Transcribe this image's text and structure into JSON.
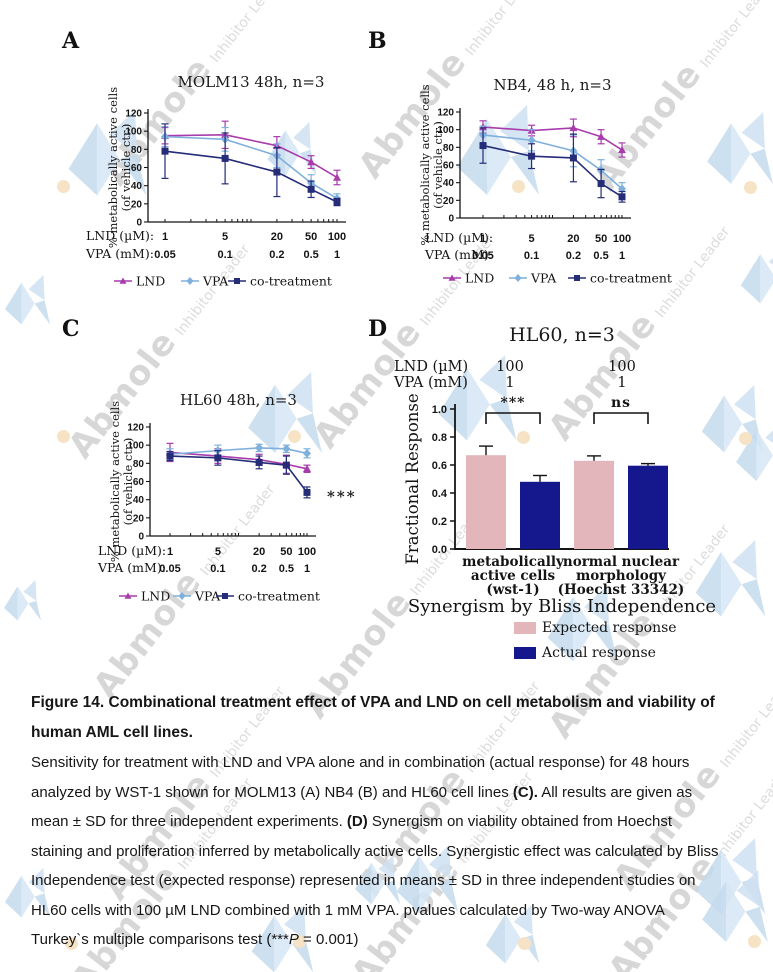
{
  "figure": {
    "panel_labels": [
      "A",
      "B",
      "C",
      "D"
    ]
  },
  "watermark": {
    "brand": "Abmole",
    "tagline": "Inhibitor Leader",
    "text_color": "#d7d7d7",
    "logo_color": "#c9ddf0",
    "dot_color": "#f6e3c5"
  },
  "chart_data": [
    {
      "panel": "A",
      "type": "line",
      "title": "MOLM13 48h, n=3",
      "ylabel_lines": [
        "% metabolically active cells",
        "(of vehicle ctr.)"
      ],
      "ylim": [
        0,
        120
      ],
      "yticks": [
        0,
        20,
        40,
        60,
        80,
        100,
        120
      ],
      "x": [
        1,
        5,
        20,
        50,
        100
      ],
      "x_scale": "log",
      "dose_rows": [
        {
          "label": "LND (µM):",
          "values": [
            "1",
            "5",
            "20",
            "50",
            "100"
          ]
        },
        {
          "label": "VPA (mM):",
          "values": [
            "0.05",
            "0.1",
            "0.2",
            "0.5",
            "1"
          ]
        }
      ],
      "series": [
        {
          "name": "LND",
          "color": "#a83cad",
          "marker": "triangle",
          "values": [
            95,
            96,
            84,
            66,
            49
          ],
          "err": [
            9,
            15,
            10,
            7,
            8
          ]
        },
        {
          "name": "VPA",
          "color": "#7fb0dc",
          "marker": "diamond",
          "values": [
            94,
            91,
            73,
            43,
            26
          ],
          "err": [
            11,
            13,
            13,
            9,
            5
          ]
        },
        {
          "name": "co-treatment",
          "color": "#252c78",
          "marker": "square",
          "values": [
            78,
            70,
            55,
            36,
            22
          ],
          "err": [
            30,
            28,
            27,
            9,
            4
          ]
        }
      ]
    },
    {
      "panel": "B",
      "type": "line",
      "title": "NB4, 48 h, n=3",
      "ylabel_lines": [
        "% metabolically active cells",
        "(of vehicle ctr.)"
      ],
      "ylim": [
        0,
        120
      ],
      "yticks": [
        0,
        20,
        40,
        60,
        80,
        100,
        120
      ],
      "x": [
        1,
        5,
        20,
        50,
        100
      ],
      "x_scale": "log",
      "dose_rows": [
        {
          "label": "LND (µM):",
          "values": [
            "1",
            "5",
            "20",
            "50",
            "100"
          ]
        },
        {
          "label": "VPA (mM):",
          "values": [
            "0.05",
            "0.1",
            "0.2",
            "0.5",
            "1"
          ]
        }
      ],
      "series": [
        {
          "name": "LND",
          "color": "#a83cad",
          "marker": "triangle",
          "values": [
            103,
            99,
            102,
            92,
            77
          ],
          "err": [
            7,
            6,
            10,
            8,
            8
          ]
        },
        {
          "name": "VPA",
          "color": "#7fb0dc",
          "marker": "diamond",
          "values": [
            94,
            88,
            76,
            54,
            33
          ],
          "err": [
            10,
            12,
            18,
            12,
            7
          ]
        },
        {
          "name": "co-treatment",
          "color": "#252c78",
          "marker": "square",
          "values": [
            82,
            70,
            68,
            39,
            24
          ],
          "err": [
            20,
            14,
            27,
            16,
            6
          ]
        }
      ]
    },
    {
      "panel": "C",
      "type": "line",
      "title": "HL60 48h, n=3",
      "ylabel_lines": [
        "% metabolically active cells",
        "(of vehicle ctr.)"
      ],
      "ylim": [
        0,
        120
      ],
      "yticks": [
        0,
        20,
        40,
        60,
        80,
        100,
        120
      ],
      "x": [
        1,
        5,
        20,
        50,
        100
      ],
      "x_scale": "log",
      "annotation": "***",
      "dose_rows": [
        {
          "label": "LND (µM):",
          "values": [
            "1",
            "5",
            "20",
            "50",
            "100"
          ]
        },
        {
          "label": "VPA (mM):",
          "values": [
            "0.05",
            "0.1",
            "0.2",
            "0.5",
            "1"
          ]
        }
      ],
      "series": [
        {
          "name": "LND",
          "color": "#a83cad",
          "marker": "triangle",
          "values": [
            92,
            88,
            84,
            79,
            74
          ],
          "err": [
            10,
            8,
            6,
            10,
            4
          ]
        },
        {
          "name": "VPA",
          "color": "#7fb0dc",
          "marker": "diamond",
          "values": [
            90,
            94,
            97,
            96,
            91
          ],
          "err": [
            6,
            6,
            4,
            4,
            5
          ]
        },
        {
          "name": "co-treatment",
          "color": "#252c78",
          "marker": "square",
          "values": [
            88,
            86,
            81,
            78,
            48
          ],
          "err": [
            5,
            8,
            7,
            10,
            6
          ]
        }
      ]
    },
    {
      "panel": "D",
      "type": "bar",
      "title": "HL60, n=3",
      "ylabel": "Fractional Response",
      "ylim": [
        0,
        1
      ],
      "yticks": [
        "0.0",
        "0.2",
        "0.4",
        "0.6",
        "0.8",
        "1.0"
      ],
      "dose_rows": [
        {
          "label": "LND (µM)",
          "values": [
            "100",
            "100"
          ]
        },
        {
          "label": "VPA (mM)",
          "values": [
            "1",
            "1"
          ]
        }
      ],
      "groups": [
        {
          "label_lines": [
            "metabolically",
            "active cells",
            "(wst-1)"
          ],
          "significance": "***",
          "expected": 0.67,
          "expected_err": 0.065,
          "actual": 0.48,
          "actual_err": 0.045
        },
        {
          "label_lines": [
            "normal nuclear",
            "morphology",
            "(Hoechst 33342)"
          ],
          "significance": "ns",
          "expected": 0.63,
          "expected_err": 0.035,
          "actual": 0.595,
          "actual_err": 0.015
        }
      ],
      "xlabel": "Synergism by Bliss Independence",
      "legend": [
        {
          "label": "Expected response",
          "color": "#e2b6ba"
        },
        {
          "label": "Actual response",
          "color": "#14188c"
        }
      ]
    }
  ],
  "caption": {
    "title_segments": [
      {
        "text": "Figure 14. Combinational treatment effect of VPA and LND on cell metabolism and viability of human AML cell lines.",
        "bold": true
      }
    ],
    "body_segments": [
      {
        "text": "Sensitivity for treatment with LND and VPA alone and in combination (actual response) for 48 hours analyzed by WST-1 shown for MOLM13 (A) NB4 (B) and HL60 cell lines "
      },
      {
        "text": "(C).",
        "bold": true
      },
      {
        "text": " All results are given as mean ± SD for three independent experiments. "
      },
      {
        "text": "(D)",
        "bold": true
      },
      {
        "text": " Synergism on viability obtained from Hoechst staining and proliferation inferred by metabolically active cells. Synergistic effect was calculated by Bliss Independence test (expected response) represented in means ± SD in three independent studies on HL60 cells with 100 µM LND combined with 1 mM VPA. pvalues calculated by Two-way ANOVA Turkey`s multiple comparisons test (***"
      },
      {
        "text": "P",
        "italic": true
      },
      {
        "text": " = 0.001)"
      }
    ]
  }
}
